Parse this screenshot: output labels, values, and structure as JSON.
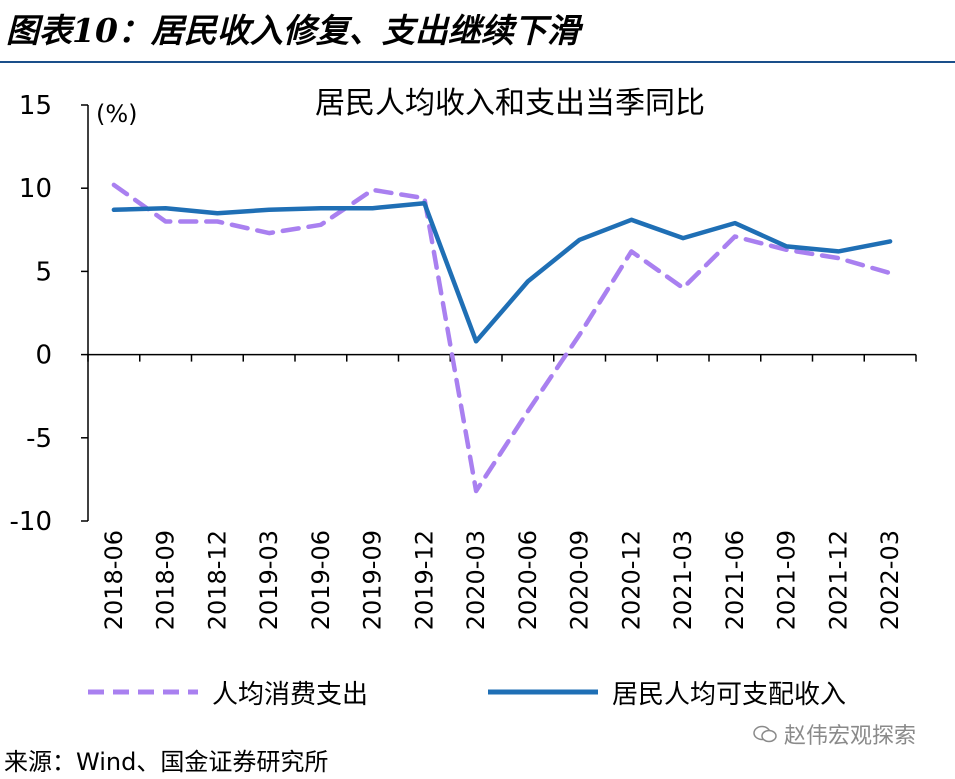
{
  "figure_title": "图表10：居民收入修复、支出继续下滑",
  "source": "来源：Wind、国金证券研究所",
  "watermark": "赵伟宏观探索",
  "colors": {
    "consumption": "#a980f0",
    "income": "#1f6fb5",
    "rule": "#1a4f8a"
  },
  "chart_data": {
    "type": "line",
    "title": "居民人均收入和支出当季同比",
    "ylabel": "(%)",
    "ylim": [
      -10,
      15
    ],
    "yticks": [
      -10,
      -5,
      0,
      5,
      10,
      15
    ],
    "x": [
      "2018-06",
      "2018-09",
      "2018-12",
      "2019-03",
      "2019-06",
      "2019-09",
      "2019-12",
      "2020-03",
      "2020-06",
      "2020-09",
      "2020-12",
      "2021-03",
      "2021-06",
      "2021-09",
      "2021-12",
      "2022-03"
    ],
    "series": [
      {
        "name": "人均消费支出",
        "style": "dashed",
        "color": "#a980f0",
        "values": [
          10.2,
          8.0,
          8.0,
          7.3,
          7.8,
          9.9,
          9.4,
          -8.2,
          -3.4,
          1.2,
          6.2,
          4.0,
          7.1,
          6.3,
          5.8,
          4.9
        ]
      },
      {
        "name": "居民人均可支配收入",
        "style": "solid",
        "color": "#1f6fb5",
        "values": [
          8.7,
          8.8,
          8.5,
          8.7,
          8.8,
          8.8,
          9.1,
          0.8,
          4.4,
          6.9,
          8.1,
          7.0,
          7.9,
          6.5,
          6.2,
          6.8
        ]
      }
    ],
    "grid": false,
    "legend": "bottom"
  }
}
